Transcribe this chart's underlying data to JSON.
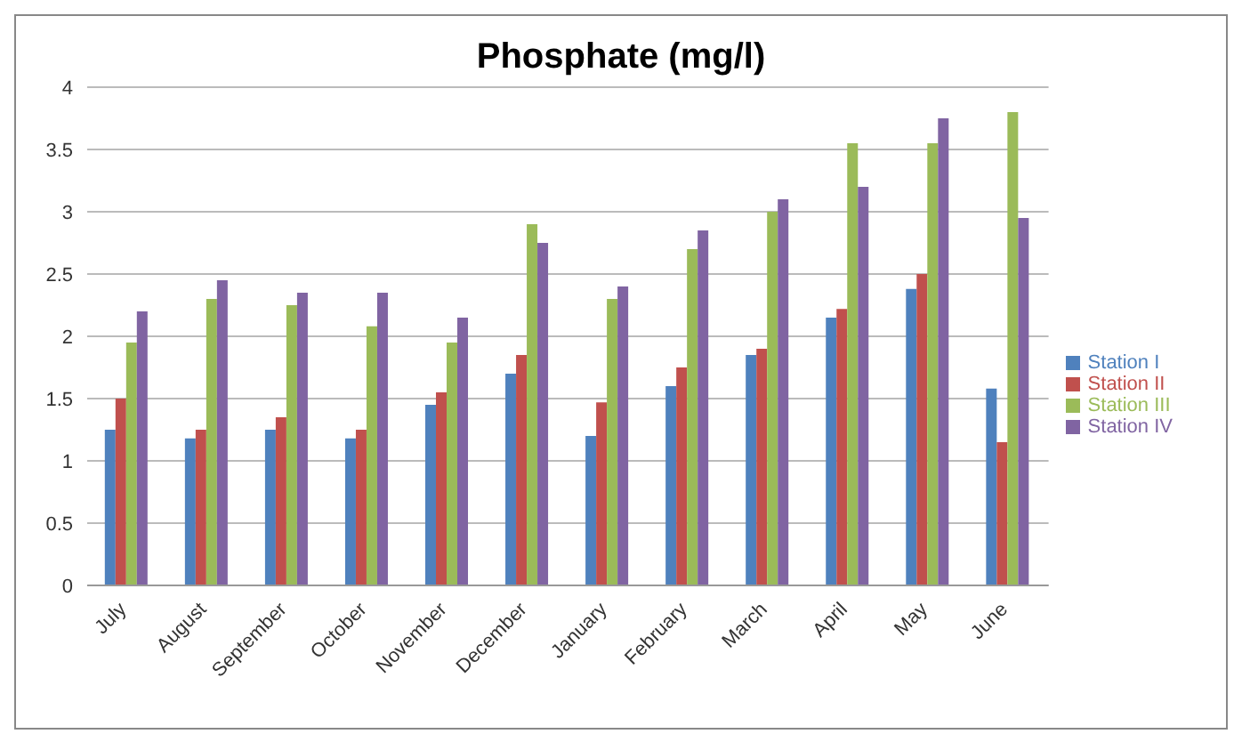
{
  "chart_data": {
    "type": "bar",
    "title": "Phosphate (mg/l)",
    "categories": [
      "July",
      "August",
      "September",
      "October",
      "November",
      "December",
      "January",
      "February",
      "March",
      "April",
      "May",
      "June"
    ],
    "series": [
      {
        "name": "Station I",
        "color": "#4f81bd",
        "values": [
          1.25,
          1.18,
          1.25,
          1.18,
          1.45,
          1.7,
          1.2,
          1.6,
          1.85,
          2.15,
          2.38,
          1.58
        ]
      },
      {
        "name": "Station II",
        "color": "#c0504d",
        "values": [
          1.5,
          1.25,
          1.35,
          1.25,
          1.55,
          1.85,
          1.47,
          1.75,
          1.9,
          2.22,
          2.5,
          1.15
        ]
      },
      {
        "name": "Station III",
        "color": "#9bbb59",
        "values": [
          1.95,
          2.3,
          2.25,
          2.08,
          1.95,
          2.9,
          2.3,
          2.7,
          3.0,
          3.55,
          3.55,
          3.8
        ]
      },
      {
        "name": "Station IV",
        "color": "#8064a2",
        "values": [
          2.2,
          2.45,
          2.35,
          2.35,
          2.15,
          2.75,
          2.4,
          2.85,
          3.1,
          3.2,
          3.75,
          2.95
        ]
      }
    ],
    "ylim": [
      0,
      4
    ],
    "yticks": [
      0,
      0.5,
      1,
      1.5,
      2,
      2.5,
      3,
      3.5,
      4
    ],
    "grid": "y",
    "legend": "right"
  }
}
